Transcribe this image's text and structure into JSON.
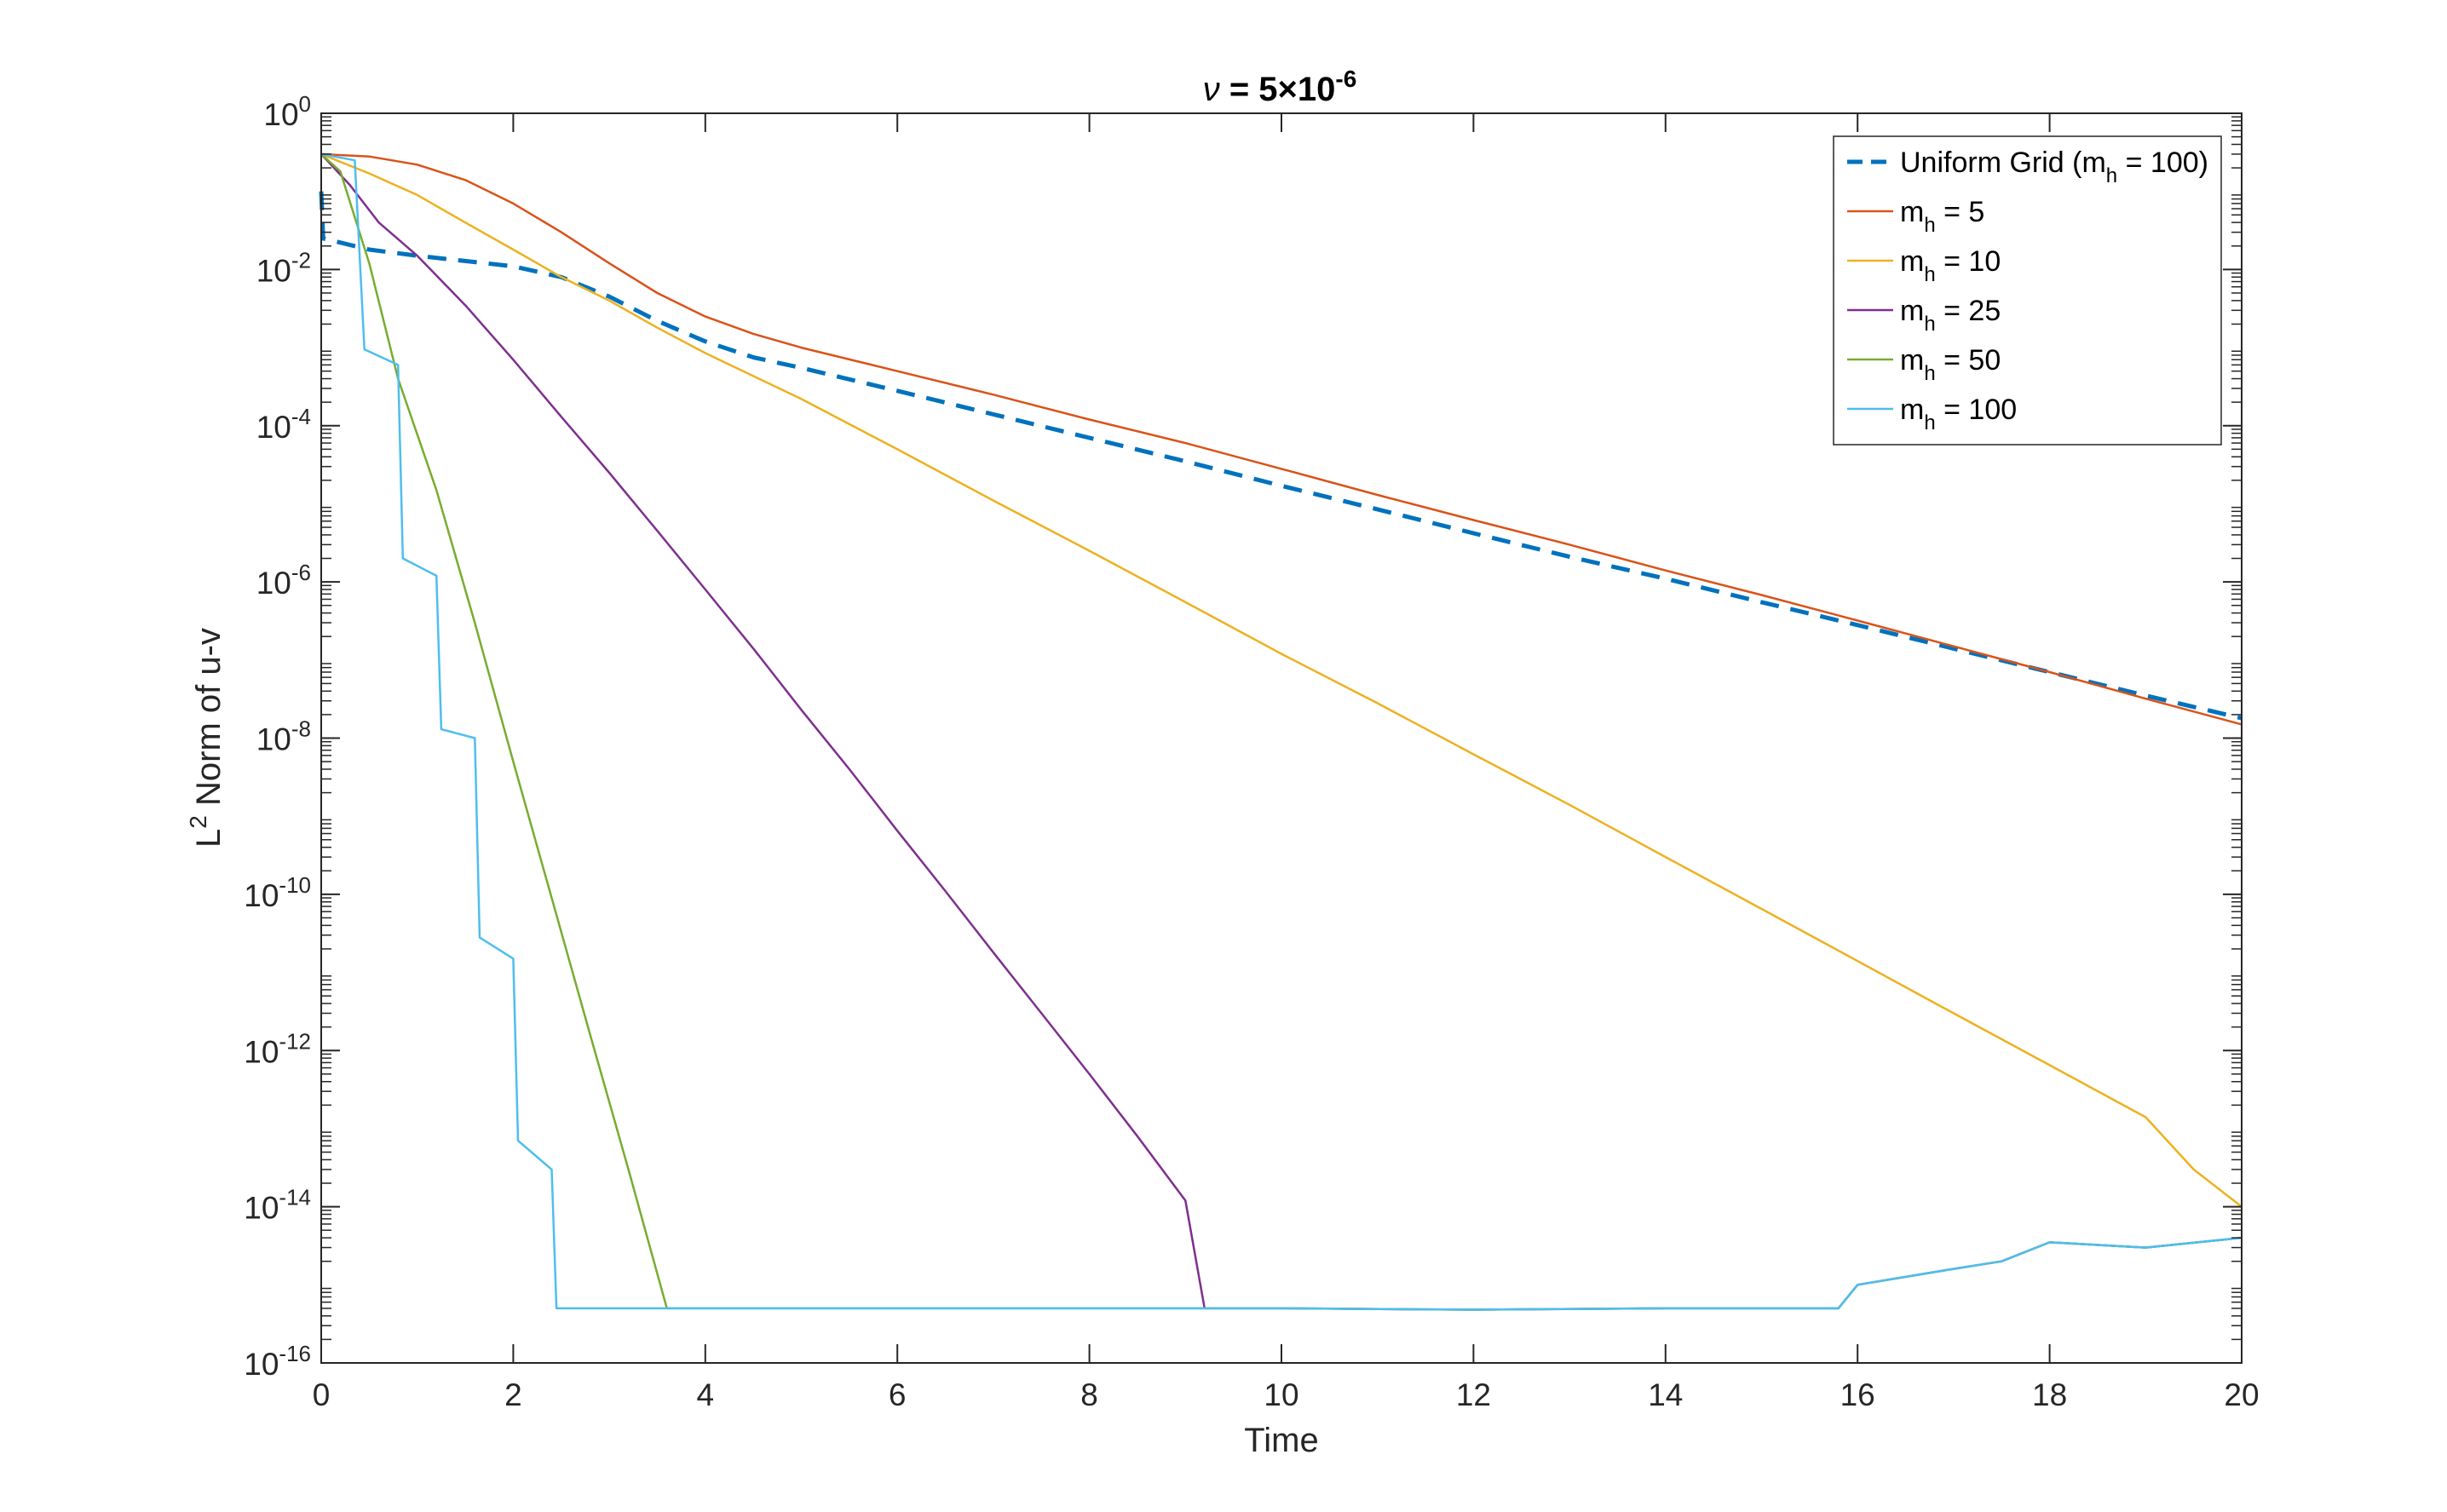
{
  "chart_data": {
    "type": "line",
    "title": {
      "symbol": "ν",
      "main": " = 5×10",
      "sup": "-6"
    },
    "xlabel": "Time",
    "ylabel": {
      "base": "L",
      "sup": "2",
      "rest": " Norm of u-v"
    },
    "xlim": [
      0,
      20
    ],
    "ylim": [
      1e-16,
      1
    ],
    "yscale": "log",
    "grid": false,
    "legend_position": "top-right",
    "x_ticks": [
      "0",
      "2",
      "4",
      "6",
      "8",
      "10",
      "12",
      "14",
      "16",
      "18",
      "20"
    ],
    "y_ticks": [
      {
        "base": "10",
        "exp": "0"
      },
      {
        "base": "10",
        "exp": "-2"
      },
      {
        "base": "10",
        "exp": "-4"
      },
      {
        "base": "10",
        "exp": "-6"
      },
      {
        "base": "10",
        "exp": "-8"
      },
      {
        "base": "10",
        "exp": "-10"
      },
      {
        "base": "10",
        "exp": "-12"
      },
      {
        "base": "10",
        "exp": "-14"
      },
      {
        "base": "10",
        "exp": "-16"
      }
    ],
    "series": [
      {
        "label_main": "Uniform Grid (m",
        "label_sub": "h",
        "label_tail": " = 100)",
        "color": "#0072BD",
        "dash": true,
        "points": [
          [
            0,
            0.1
          ],
          [
            0.02,
            0.025
          ],
          [
            0.5,
            0.018
          ],
          [
            1,
            0.015
          ],
          [
            2,
            0.011
          ],
          [
            2.5,
            0.008
          ],
          [
            3,
            0.0045
          ],
          [
            3.5,
            0.0022
          ],
          [
            4,
            0.0012
          ],
          [
            4.5,
            0.00075
          ],
          [
            5,
            0.00055
          ],
          [
            6,
            0.00028
          ],
          [
            7,
            0.00014
          ],
          [
            8,
            7e-05
          ],
          [
            9,
            3.5e-05
          ],
          [
            10,
            1.7e-05
          ],
          [
            11,
            8.5e-06
          ],
          [
            12,
            4.2e-06
          ],
          [
            13,
            2.1e-06
          ],
          [
            14,
            1.1e-06
          ],
          [
            15,
            5.5e-07
          ],
          [
            16,
            2.8e-07
          ],
          [
            17,
            1.4e-07
          ],
          [
            18,
            7e-08
          ],
          [
            19,
            3.5e-08
          ],
          [
            20,
            1.8e-08
          ]
        ]
      },
      {
        "label_main": "m",
        "label_sub": "h",
        "label_tail": " = 5",
        "color": "#D95319",
        "dash": false,
        "points": [
          [
            0,
            0.3
          ],
          [
            0.5,
            0.28
          ],
          [
            1,
            0.22
          ],
          [
            1.5,
            0.14
          ],
          [
            2,
            0.07
          ],
          [
            2.5,
            0.03
          ],
          [
            3,
            0.012
          ],
          [
            3.5,
            0.005
          ],
          [
            4,
            0.0025
          ],
          [
            4.5,
            0.0015
          ],
          [
            5,
            0.001
          ],
          [
            6,
            0.0005
          ],
          [
            7,
            0.00025
          ],
          [
            8,
            0.00012
          ],
          [
            9,
            6e-05
          ],
          [
            10,
            2.8e-05
          ],
          [
            11,
            1.3e-05
          ],
          [
            12,
            6.2e-06
          ],
          [
            13,
            3e-06
          ],
          [
            14,
            1.4e-06
          ],
          [
            15,
            6.8e-07
          ],
          [
            16,
            3.2e-07
          ],
          [
            17,
            1.5e-07
          ],
          [
            18,
            7e-08
          ],
          [
            19,
            3.2e-08
          ],
          [
            20,
            1.5e-08
          ]
        ]
      },
      {
        "label_main": "m",
        "label_sub": "h",
        "label_tail": " = 10",
        "color": "#EDB120",
        "dash": false,
        "points": [
          [
            0,
            0.3
          ],
          [
            0.5,
            0.17
          ],
          [
            1,
            0.09
          ],
          [
            1.5,
            0.04
          ],
          [
            2,
            0.018
          ],
          [
            2.5,
            0.008
          ],
          [
            3,
            0.004
          ],
          [
            3.5,
            0.0018
          ],
          [
            4,
            0.00085
          ],
          [
            5,
            0.00022
          ],
          [
            6,
            5e-05
          ],
          [
            7,
            1.1e-05
          ],
          [
            8,
            2.5e-06
          ],
          [
            9,
            5.5e-07
          ],
          [
            10,
            1.2e-07
          ],
          [
            11,
            2.8e-08
          ],
          [
            12,
            6.2e-09
          ],
          [
            13,
            1.4e-09
          ],
          [
            14,
            3e-10
          ],
          [
            15,
            6.5e-11
          ],
          [
            16,
            1.4e-11
          ],
          [
            17,
            3e-12
          ],
          [
            18,
            6.5e-13
          ],
          [
            19,
            1.4e-13
          ],
          [
            19.5,
            3e-14
          ],
          [
            20,
            1e-14
          ]
        ]
      },
      {
        "label_main": "m",
        "label_sub": "h",
        "label_tail": " = 25",
        "color": "#7E2F8E",
        "dash": false,
        "points": [
          [
            0,
            0.3
          ],
          [
            0.3,
            0.12
          ],
          [
            0.6,
            0.04
          ],
          [
            1,
            0.015
          ],
          [
            1.5,
            0.0035
          ],
          [
            2,
            0.0007
          ],
          [
            2.5,
            0.00013
          ],
          [
            3,
            2.5e-05
          ],
          [
            3.5,
            4.5e-06
          ],
          [
            4,
            8e-07
          ],
          [
            4.5,
            1.4e-07
          ],
          [
            5,
            2.3e-08
          ],
          [
            5.5,
            4e-09
          ],
          [
            6,
            6.5e-10
          ],
          [
            6.5,
            1.1e-10
          ],
          [
            7,
            1.8e-11
          ],
          [
            7.5,
            3e-12
          ],
          [
            8,
            5e-13
          ],
          [
            8.5,
            8e-14
          ],
          [
            9,
            1.2e-14
          ],
          [
            9.2,
            5e-16
          ],
          [
            10,
            5e-16
          ],
          [
            12,
            4.8e-16
          ],
          [
            14,
            5e-16
          ],
          [
            15.8,
            5e-16
          ],
          [
            16,
            1e-15
          ],
          [
            17,
            1.6e-15
          ],
          [
            17.5,
            2e-15
          ],
          [
            18,
            3.5e-15
          ],
          [
            19,
            3e-15
          ],
          [
            20,
            4e-15
          ]
        ]
      },
      {
        "label_main": "m",
        "label_sub": "h",
        "label_tail": " = 50",
        "color": "#77AC30",
        "dash": false,
        "points": [
          [
            0,
            0.3
          ],
          [
            0.2,
            0.18
          ],
          [
            0.5,
            0.012
          ],
          [
            0.8,
            0.0004
          ],
          [
            1.2,
            1.5e-05
          ],
          [
            1.6,
            3e-07
          ],
          [
            2,
            5e-09
          ],
          [
            2.4,
            9e-11
          ],
          [
            2.8,
            1.6e-12
          ],
          [
            3.2,
            3e-14
          ],
          [
            3.6,
            5e-16
          ],
          [
            4.5,
            5e-16
          ],
          [
            6,
            5e-16
          ],
          [
            8,
            5e-16
          ],
          [
            10,
            5e-16
          ],
          [
            12,
            4.8e-16
          ],
          [
            14,
            5e-16
          ],
          [
            15.8,
            5e-16
          ],
          [
            16,
            1e-15
          ],
          [
            17,
            1.6e-15
          ],
          [
            17.5,
            2e-15
          ],
          [
            18,
            3.5e-15
          ],
          [
            19,
            3e-15
          ],
          [
            20,
            4e-15
          ]
        ]
      },
      {
        "label_main": "m",
        "label_sub": "h",
        "label_tail": " = 100",
        "color": "#4DBEEE",
        "dash": false,
        "points": [
          [
            0,
            0.3
          ],
          [
            0.35,
            0.25
          ],
          [
            0.45,
            0.00095
          ],
          [
            0.8,
            0.0006
          ],
          [
            0.85,
            2e-06
          ],
          [
            1.2,
            1.2e-06
          ],
          [
            1.25,
            1.3e-08
          ],
          [
            1.6,
            1e-08
          ],
          [
            1.65,
            2.8e-11
          ],
          [
            2,
            1.5e-11
          ],
          [
            2.05,
            7e-14
          ],
          [
            2.4,
            3e-14
          ],
          [
            2.45,
            5e-16
          ],
          [
            4,
            5e-16
          ],
          [
            6,
            5e-16
          ],
          [
            8,
            5e-16
          ],
          [
            10,
            5e-16
          ],
          [
            12,
            4.8e-16
          ],
          [
            14,
            5e-16
          ],
          [
            15.8,
            5e-16
          ],
          [
            16,
            1e-15
          ],
          [
            17,
            1.6e-15
          ],
          [
            17.5,
            2e-15
          ],
          [
            18,
            3.5e-15
          ],
          [
            19,
            3e-15
          ],
          [
            20,
            4e-15
          ]
        ]
      }
    ]
  }
}
